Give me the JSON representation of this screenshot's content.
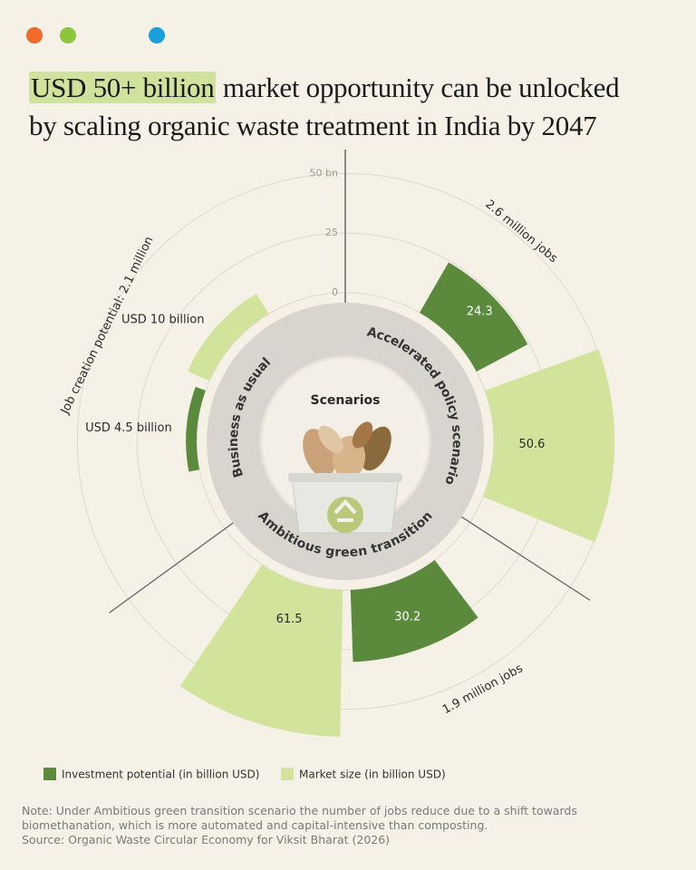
{
  "header": {
    "title_highlight": "USD 50+ billion",
    "title_line1_rest": "market opportunity can be unlocked",
    "title_line2": "by scaling organic waste treatment in India by 2047"
  },
  "chart_data": {
    "type": "radial-bar",
    "center_label": "Scenarios",
    "categories": [
      "Accelerated policy scenario",
      "Ambitious green transition",
      "Business as usual"
    ],
    "job_labels": [
      "2.6 million jobs",
      "1.9 million jobs",
      "Job creation potential: 2.1 million"
    ],
    "series": [
      {
        "name": "Investment potential (in billion USD)",
        "color": "#5b8a3c",
        "values": [
          24.3,
          30.2,
          4.5
        ],
        "value_labels": [
          "24.3",
          "30.2",
          "USD 4.5 billion"
        ]
      },
      {
        "name": "Market size (in billion USD)",
        "color": "#d2e39c",
        "values": [
          50.6,
          61.5,
          10
        ],
        "value_labels": [
          "50.6",
          "61.5",
          "USD 10 billion"
        ]
      }
    ],
    "ylim": [
      0,
      60
    ],
    "yticks": [
      0,
      25,
      {
        "value": 50,
        "label": "50 bn"
      }
    ],
    "grid": true
  },
  "note": "Note: Under Ambitious green transition scenario the number of jobs reduce due to a shift towards biomethanation, which is more automated and capital-intensive than composting.",
  "source": "Source: Organic Waste Circular Economy for Viksit Bharat (2026)"
}
